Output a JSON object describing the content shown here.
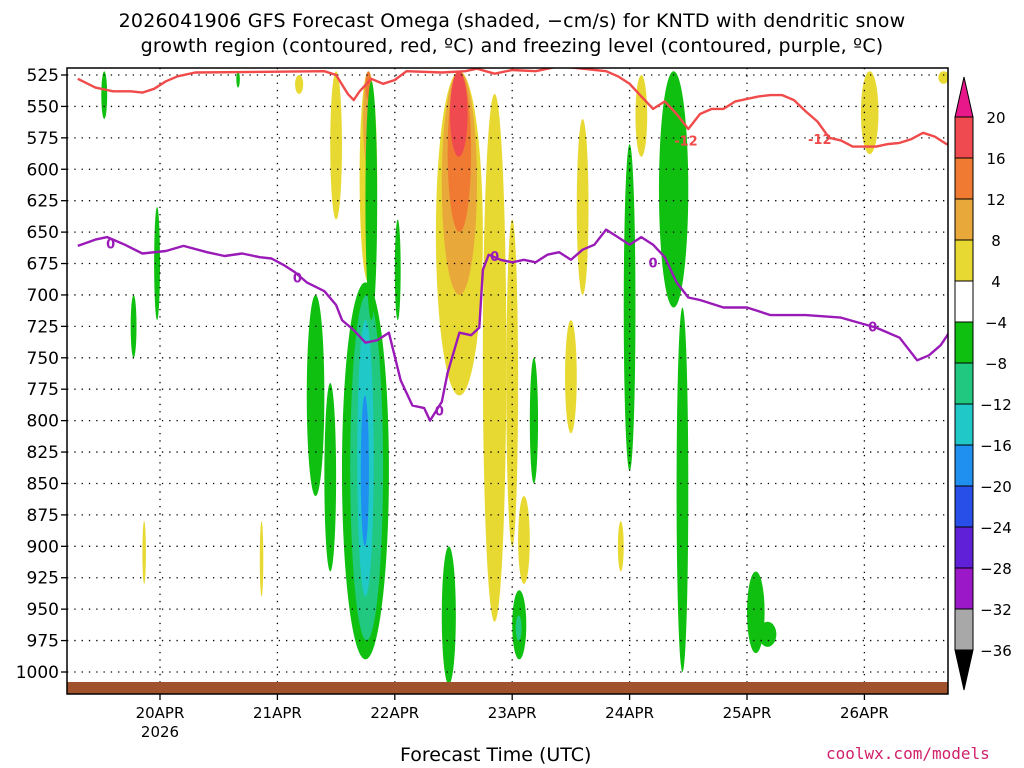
{
  "chart_data": {
    "type": "heatmap",
    "title_line1": "2026041906 GFS Forecast Omega (shaded, −cm/s) for KNTD with dendritic snow",
    "title_line2": "growth region (contoured, red, ºC) and freezing level (contoured, purple, ºC)",
    "xlabel": "Forecast Time (UTC)",
    "credit": "coolwx.com/models",
    "y_axis": {
      "scale": "pressure",
      "ticks": [
        525,
        550,
        575,
        600,
        625,
        650,
        675,
        700,
        725,
        750,
        775,
        800,
        825,
        850,
        875,
        900,
        925,
        950,
        975,
        1000
      ],
      "range": [
        1000,
        525
      ],
      "inverted": true
    },
    "x_axis": {
      "ticks": [
        "20APR",
        "21APR",
        "22APR",
        "23APR",
        "24APR",
        "25APR",
        "26APR"
      ],
      "tick_days": [
        20,
        21,
        22,
        23,
        24,
        25,
        26
      ],
      "year_label": "2026",
      "range_days": [
        19.3,
        26.75
      ],
      "grid": "dotted"
    },
    "colorbar": {
      "labels": [
        "20",
        "16",
        "12",
        "8",
        "4",
        "−4",
        "−8",
        "−12",
        "−16",
        "−20",
        "−24",
        "−28",
        "−32",
        "−36"
      ],
      "colors": [
        "#ef4a4f",
        "#f07a32",
        "#e9a83a",
        "#e8d932",
        "#ffffff",
        "#10c010",
        "#20c880",
        "#20c8c8",
        "#2090f0",
        "#2850e8",
        "#6020d8",
        "#9a18c8",
        "#a8a8a8"
      ],
      "top_arrow_color": "#e8188a",
      "bottom_arrow_color": "#000000"
    },
    "series": [
      {
        "name": "-12",
        "color": "#f04a4a",
        "points": [
          [
            19.3,
            528
          ],
          [
            19.45,
            535
          ],
          [
            19.6,
            538
          ],
          [
            19.75,
            538
          ],
          [
            19.85,
            539
          ],
          [
            19.95,
            536
          ],
          [
            20.05,
            530
          ],
          [
            20.15,
            526
          ],
          [
            20.3,
            523
          ],
          [
            21.4,
            522
          ],
          [
            21.5,
            525
          ],
          [
            21.6,
            540
          ],
          [
            21.65,
            545
          ],
          [
            21.7,
            538
          ],
          [
            21.8,
            528
          ],
          [
            21.9,
            532
          ],
          [
            22.0,
            529
          ],
          [
            22.1,
            522
          ],
          [
            22.4,
            523
          ],
          [
            22.6,
            522
          ],
          [
            22.7,
            520
          ],
          [
            22.85,
            524
          ],
          [
            23.0,
            521
          ],
          [
            23.2,
            522
          ],
          [
            23.4,
            518
          ],
          [
            23.6,
            520
          ],
          [
            23.8,
            522
          ],
          [
            23.9,
            526
          ],
          [
            24.0,
            532
          ],
          [
            24.1,
            542
          ],
          [
            24.2,
            552
          ],
          [
            24.3,
            546
          ],
          [
            24.4,
            556
          ],
          [
            24.5,
            568
          ],
          [
            24.6,
            556
          ],
          [
            24.7,
            552
          ],
          [
            24.8,
            552
          ],
          [
            24.9,
            546
          ],
          [
            25.0,
            544
          ],
          [
            25.1,
            542
          ],
          [
            25.2,
            541
          ],
          [
            25.3,
            541
          ],
          [
            25.4,
            545
          ],
          [
            25.5,
            554
          ],
          [
            25.6,
            562
          ],
          [
            25.7,
            575
          ],
          [
            25.8,
            577
          ],
          [
            25.9,
            582
          ],
          [
            26.0,
            582
          ],
          [
            26.1,
            582
          ],
          [
            26.2,
            580
          ],
          [
            26.3,
            579
          ],
          [
            26.4,
            576
          ],
          [
            26.5,
            571
          ],
          [
            26.6,
            574
          ],
          [
            26.7,
            580
          ],
          [
            26.75,
            580
          ]
        ],
        "labels": [
          {
            "text": "-12",
            "at": [
              24.48,
              577
            ]
          },
          {
            "text": "-12",
            "at": [
              25.62,
              576
            ]
          }
        ]
      },
      {
        "name": "0",
        "color": "#9a1ab8",
        "points": [
          [
            19.3,
            661
          ],
          [
            19.45,
            656
          ],
          [
            19.55,
            654
          ],
          [
            19.7,
            660
          ],
          [
            19.85,
            667
          ],
          [
            20.05,
            665
          ],
          [
            20.2,
            661
          ],
          [
            20.4,
            666
          ],
          [
            20.55,
            669
          ],
          [
            20.7,
            667
          ],
          [
            20.85,
            670
          ],
          [
            20.95,
            671
          ],
          [
            21.05,
            676
          ],
          [
            21.15,
            682
          ],
          [
            21.25,
            690
          ],
          [
            21.4,
            697
          ],
          [
            21.5,
            708
          ],
          [
            21.55,
            720
          ],
          [
            21.65,
            728
          ],
          [
            21.75,
            738
          ],
          [
            21.85,
            736
          ],
          [
            21.95,
            730
          ],
          [
            22.05,
            768
          ],
          [
            22.15,
            788
          ],
          [
            22.25,
            790
          ],
          [
            22.3,
            800
          ],
          [
            22.4,
            785
          ],
          [
            22.45,
            762
          ],
          [
            22.55,
            730
          ],
          [
            22.65,
            732
          ],
          [
            22.72,
            726
          ],
          [
            22.75,
            680
          ],
          [
            22.8,
            668
          ],
          [
            22.9,
            672
          ],
          [
            23.0,
            674
          ],
          [
            23.1,
            672
          ],
          [
            23.2,
            674
          ],
          [
            23.3,
            668
          ],
          [
            23.4,
            666
          ],
          [
            23.5,
            672
          ],
          [
            23.6,
            664
          ],
          [
            23.7,
            660
          ],
          [
            23.8,
            648
          ],
          [
            23.9,
            654
          ],
          [
            24.0,
            660
          ],
          [
            24.1,
            654
          ],
          [
            24.2,
            660
          ],
          [
            24.3,
            670
          ],
          [
            24.4,
            690
          ],
          [
            24.5,
            702
          ],
          [
            24.6,
            704
          ],
          [
            24.8,
            710
          ],
          [
            25.0,
            710
          ],
          [
            25.2,
            716
          ],
          [
            25.5,
            716
          ],
          [
            25.8,
            718
          ],
          [
            26.1,
            726
          ],
          [
            26.3,
            734
          ],
          [
            26.45,
            752
          ],
          [
            26.55,
            748
          ],
          [
            26.65,
            740
          ],
          [
            26.75,
            726
          ]
        ],
        "labels": [
          {
            "text": "0",
            "at": [
              19.58,
              659
            ]
          },
          {
            "text": "0",
            "at": [
              21.17,
              686
            ]
          },
          {
            "text": "0",
            "at": [
              22.38,
              792
            ]
          },
          {
            "text": "0",
            "at": [
              22.85,
              669
            ]
          },
          {
            "text": "0",
            "at": [
              24.2,
              674
            ]
          },
          {
            "text": "0",
            "at": [
              26.07,
              725
            ]
          }
        ]
      }
    ],
    "omega_shading": [
      {
        "v": 4,
        "x": [
          22.35,
          22.75
        ],
        "p": [
          522,
          780
        ]
      },
      {
        "v": 8,
        "x": [
          22.4,
          22.7
        ],
        "p": [
          522,
          700
        ]
      },
      {
        "v": 12,
        "x": [
          22.45,
          22.65
        ],
        "p": [
          522,
          650
        ]
      },
      {
        "v": 16,
        "x": [
          22.47,
          22.62
        ],
        "p": [
          522,
          590
        ]
      },
      {
        "v": 4,
        "x": [
          21.7,
          21.85
        ],
        "p": [
          522,
          690
        ]
      },
      {
        "v": 8,
        "x": [
          21.73,
          21.82
        ],
        "p": [
          522,
          600
        ]
      },
      {
        "v": 12,
        "x": [
          21.75,
          21.8
        ],
        "p": [
          522,
          545
        ]
      },
      {
        "v": 4,
        "x": [
          21.45,
          21.55
        ],
        "p": [
          522,
          640
        ]
      },
      {
        "v": 4,
        "x": [
          22.75,
          22.95
        ],
        "p": [
          540,
          960
        ]
      },
      {
        "v": 4,
        "x": [
          22.95,
          23.05
        ],
        "p": [
          640,
          900
        ]
      },
      {
        "v": 4,
        "x": [
          23.45,
          23.55
        ],
        "p": [
          720,
          810
        ]
      },
      {
        "v": 4,
        "x": [
          23.55,
          23.65
        ],
        "p": [
          560,
          700
        ]
      },
      {
        "v": 4,
        "x": [
          23.05,
          23.15
        ],
        "p": [
          860,
          930
        ]
      },
      {
        "v": 4,
        "x": [
          21.15,
          21.22
        ],
        "p": [
          525,
          540
        ]
      },
      {
        "v": 4,
        "x": [
          24.05,
          24.15
        ],
        "p": [
          525,
          590
        ]
      },
      {
        "v": 4,
        "x": [
          25.97,
          26.12
        ],
        "p": [
          522,
          588
        ]
      },
      {
        "v": 4,
        "x": [
          26.63,
          26.72
        ],
        "p": [
          522,
          532
        ]
      },
      {
        "v": 4,
        "x": [
          19.85,
          19.88
        ],
        "p": [
          880,
          930
        ]
      },
      {
        "v": 4,
        "x": [
          20.85,
          20.88
        ],
        "p": [
          880,
          940
        ]
      },
      {
        "v": 4,
        "x": [
          23.9,
          23.95
        ],
        "p": [
          880,
          920
        ]
      },
      {
        "v": -4,
        "x": [
          21.55,
          21.95
        ],
        "p": [
          690,
          990
        ]
      },
      {
        "v": -8,
        "x": [
          21.62,
          21.9
        ],
        "p": [
          700,
          975
        ]
      },
      {
        "v": -12,
        "x": [
          21.68,
          21.82
        ],
        "p": [
          720,
          940
        ]
      },
      {
        "v": -16,
        "x": [
          21.71,
          21.78
        ],
        "p": [
          780,
          900
        ]
      },
      {
        "v": -4,
        "x": [
          21.75,
          21.85
        ],
        "p": [
          530,
          720
        ]
      },
      {
        "v": -4,
        "x": [
          21.25,
          21.4
        ],
        "p": [
          700,
          860
        ]
      },
      {
        "v": -4,
        "x": [
          21.4,
          21.5
        ],
        "p": [
          770,
          920
        ]
      },
      {
        "v": -4,
        "x": [
          22.4,
          22.52
        ],
        "p": [
          900,
          1010
        ]
      },
      {
        "v": -4,
        "x": [
          23.0,
          23.12
        ],
        "p": [
          935,
          990
        ]
      },
      {
        "v": -8,
        "x": [
          23.03,
          23.08
        ],
        "p": [
          955,
          975
        ]
      },
      {
        "v": -4,
        "x": [
          24.25,
          24.5
        ],
        "p": [
          522,
          710
        ]
      },
      {
        "v": -4,
        "x": [
          24.4,
          24.5
        ],
        "p": [
          710,
          1000
        ]
      },
      {
        "v": -4,
        "x": [
          25.0,
          25.15
        ],
        "p": [
          920,
          985
        ]
      },
      {
        "v": -4,
        "x": [
          25.1,
          25.25
        ],
        "p": [
          960,
          980
        ]
      },
      {
        "v": -4,
        "x": [
          19.5,
          19.55
        ],
        "p": [
          522,
          560
        ]
      },
      {
        "v": -4,
        "x": [
          19.95,
          20.0
        ],
        "p": [
          630,
          720
        ]
      },
      {
        "v": -4,
        "x": [
          19.75,
          19.8
        ],
        "p": [
          700,
          750
        ]
      },
      {
        "v": -4,
        "x": [
          20.65,
          20.68
        ],
        "p": [
          522,
          535
        ]
      },
      {
        "v": -4,
        "x": [
          23.15,
          23.22
        ],
        "p": [
          750,
          850
        ]
      },
      {
        "v": -4,
        "x": [
          23.95,
          24.05
        ],
        "p": [
          580,
          840
        ]
      },
      {
        "v": -4,
        "x": [
          22.0,
          22.05
        ],
        "p": [
          640,
          720
        ]
      }
    ]
  }
}
